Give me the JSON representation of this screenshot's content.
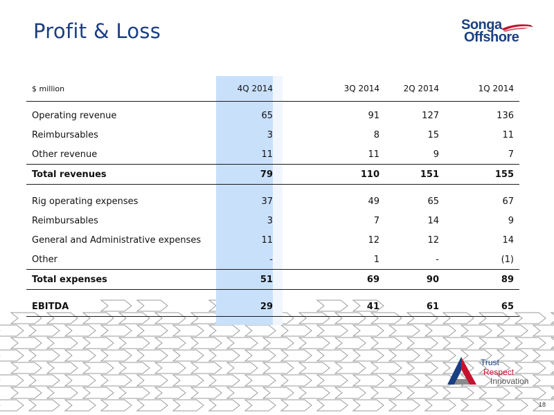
{
  "slide": {
    "title": "Profit & Loss",
    "slide_number": "18"
  },
  "logo": {
    "line1": "Songa",
    "line2": "Offshore",
    "colors": {
      "blue": "#1a3f82",
      "red": "#c4122f"
    }
  },
  "tagline": {
    "word1": "Trust",
    "word2": "Respect",
    "word3": "Innovation"
  },
  "table": {
    "unit_label": "$ million",
    "columns": [
      "4Q 2014",
      "3Q 2014",
      "2Q 2014",
      "1Q 2014"
    ],
    "rows": [
      {
        "label": "Operating revenue",
        "values": [
          "65",
          "91",
          "127",
          "136"
        ]
      },
      {
        "label": "Reimbursables",
        "values": [
          "3",
          "8",
          "15",
          "11"
        ]
      },
      {
        "label": "Other revenue",
        "values": [
          "11",
          "11",
          "9",
          "7"
        ]
      },
      {
        "label": "Total revenues",
        "values": [
          "79",
          "110",
          "151",
          "155"
        ]
      },
      {
        "label": "Rig operating expenses",
        "values": [
          "37",
          "49",
          "65",
          "67"
        ]
      },
      {
        "label": "Reimbursables",
        "values": [
          "3",
          "7",
          "14",
          "9"
        ]
      },
      {
        "label": "General and Administrative expenses",
        "values": [
          "11",
          "12",
          "12",
          "14"
        ]
      },
      {
        "label": "Other",
        "values": [
          "-",
          "1",
          "-",
          "(1)"
        ]
      },
      {
        "label": "Total expenses",
        "values": [
          "51",
          "69",
          "90",
          "89"
        ]
      },
      {
        "label": "EBITDA",
        "values": [
          "29",
          "41",
          "61",
          "65"
        ]
      }
    ]
  },
  "colors": {
    "title": "#1a3f82",
    "highlight_column": "#c9e0fb"
  }
}
